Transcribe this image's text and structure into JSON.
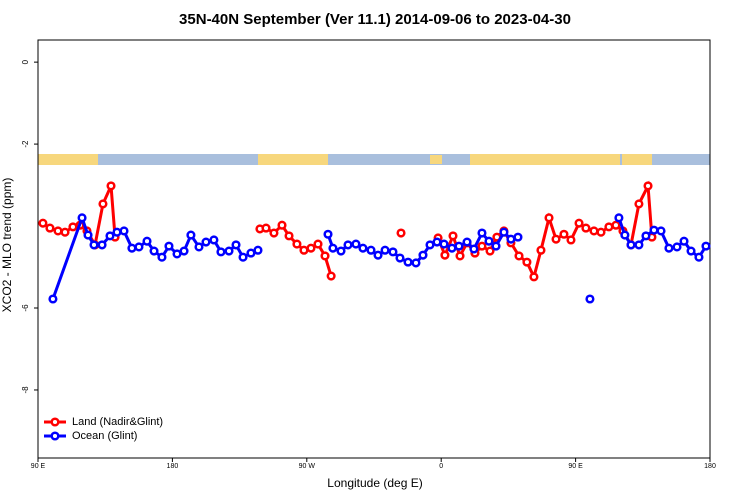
{
  "chart_data": {
    "type": "line",
    "title": "35N-40N September (Ver 11.1)   2014-09-06 to 2023-04-30",
    "xlabel": "Longitude (deg E)",
    "ylabel": "XCO2 - MLO trend (ppm)",
    "xlim": [
      90,
      540
    ],
    "xticks": [
      {
        "value": 90,
        "label": "90 E"
      },
      {
        "value": 180,
        "label": "180"
      },
      {
        "value": 270,
        "label": "90 W"
      },
      {
        "value": 360,
        "label": "0"
      },
      {
        "value": 450,
        "label": "90 E"
      },
      {
        "value": 540,
        "label": "180"
      }
    ],
    "ylim": [
      -9.66,
      0.54
    ],
    "yticks": [
      0,
      -2,
      -6,
      -8
    ],
    "legend": "bottom-left",
    "series": [
      {
        "name": "Land (Nadir&Glint)",
        "color": "#ff0000",
        "x": [
          93.3,
          98.0,
          103.4,
          108.1,
          113.4,
          118.1,
          122.8,
          128.2,
          133.5,
          138.9,
          141.6,
          200,
          238.6,
          242.7,
          248.0,
          253.4,
          258.1,
          263.4,
          268.1,
          272.8,
          277.5,
          282.2,
          286.3,
          310,
          333.1,
          350,
          357.9,
          362.5,
          367.9,
          372.6,
          377.3,
          382.6,
          387.3,
          392.7,
          397.3,
          402.0,
          406.7,
          412.1,
          417.4,
          422.1,
          426.8,
          432.2,
          436.9,
          442.2,
          446.9,
          452.3,
          456.9,
          462.3,
          467.0,
          472.3,
          477.0,
          481.7,
          487.1,
          492.4,
          498.5,
          501.1
        ],
        "values": [
          -3.93,
          -4.05,
          -4.12,
          -4.15,
          -4.02,
          -3.98,
          -4.12,
          -4.46,
          -3.46,
          -3.02,
          -4.27,
          null,
          -4.07,
          -4.05,
          -4.17,
          -3.98,
          -4.24,
          -4.44,
          -4.59,
          -4.54,
          -4.44,
          -4.73,
          -5.22,
          null,
          -4.17,
          null,
          -4.29,
          -4.71,
          -4.24,
          -4.73,
          -4.41,
          -4.66,
          -4.49,
          -4.61,
          -4.27,
          -4.12,
          -4.41,
          -4.73,
          -4.88,
          -5.24,
          -4.59,
          -3.8,
          -4.32,
          -4.2,
          -4.34,
          -3.93,
          -4.05,
          -4.12,
          -4.15,
          -4.02,
          -3.98,
          -4.12,
          -4.46,
          -3.46,
          -3.02,
          -4.27
        ]
      },
      {
        "name": "Ocean (Glint)",
        "color": "#0000ff",
        "x": [
          100.0,
          119.5,
          123.5,
          127.5,
          132.9,
          138.2,
          142.9,
          147.6,
          152.9,
          157.6,
          163.0,
          167.7,
          173.0,
          177.7,
          183.1,
          187.8,
          192.4,
          197.8,
          202.5,
          207.8,
          212.5,
          217.9,
          222.6,
          227.3,
          232.6,
          237.3,
          260,
          284.2,
          287.5,
          292.9,
          297.6,
          302.9,
          307.6,
          313.0,
          317.7,
          322.4,
          327.7,
          332.4,
          337.8,
          343.1,
          347.8,
          352.5,
          357.2,
          361.9,
          367.2,
          371.9,
          377.3,
          381.9,
          387.3,
          392.0,
          396.7,
          402.0,
          406.7,
          411.4,
          440,
          459.6,
          470,
          479.0,
          483.0,
          487.1,
          492.4,
          497.1,
          502.5,
          507.2,
          512.5,
          517.9,
          522.6,
          527.3,
          532.6,
          537.3
        ],
        "values": [
          -5.78,
          -3.8,
          -4.22,
          -4.46,
          -4.46,
          -4.24,
          -4.15,
          -4.12,
          -4.54,
          -4.51,
          -4.37,
          -4.61,
          -4.76,
          -4.49,
          -4.68,
          -4.61,
          -4.22,
          -4.51,
          -4.39,
          -4.34,
          -4.63,
          -4.61,
          -4.46,
          -4.76,
          -4.66,
          -4.59,
          null,
          -4.2,
          -4.54,
          -4.61,
          -4.46,
          -4.44,
          -4.54,
          -4.59,
          -4.71,
          -4.59,
          -4.63,
          -4.78,
          -4.88,
          -4.9,
          -4.71,
          -4.46,
          -4.39,
          -4.44,
          -4.54,
          -4.49,
          -4.39,
          -4.56,
          -4.17,
          -4.37,
          -4.49,
          -4.15,
          -4.32,
          -4.27,
          null,
          -5.78,
          null,
          -3.8,
          -4.22,
          -4.46,
          -4.46,
          -4.24,
          -4.1,
          -4.12,
          -4.54,
          -4.51,
          -4.37,
          -4.61,
          -4.76,
          -4.49
        ]
      }
    ]
  }
}
